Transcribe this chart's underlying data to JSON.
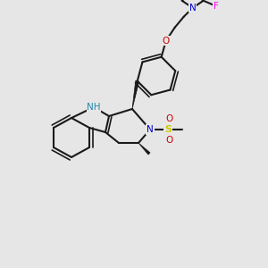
{
  "bg_color": "#e6e6e6",
  "bond_color": "#1a1a1a",
  "bond_lw": 1.5,
  "atom_colors": {
    "N": "#0000cc",
    "O": "#cc0000",
    "S": "#cccc00",
    "F": "#ff00ff",
    "NH": "#2288aa"
  },
  "font_size": 7.5,
  "bold_font_size": 8.0
}
